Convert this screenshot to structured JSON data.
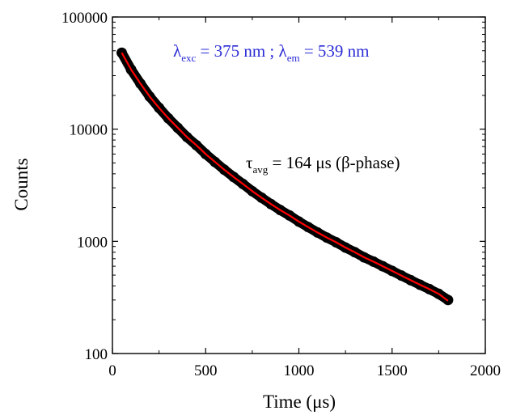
{
  "chart_data": {
    "type": "scatter",
    "xlabel": "Time (μs)",
    "ylabel": "Counts",
    "xlim": [
      0,
      2000
    ],
    "ylim": [
      100,
      100000
    ],
    "yscale": "log",
    "grid": false,
    "x_ticks": [
      0,
      500,
      1000,
      1500,
      2000
    ],
    "y_ticks": [
      100,
      1000,
      10000,
      100000
    ],
    "x_tick_labels": [
      "0",
      "500",
      "1000",
      "1500",
      "2000"
    ],
    "y_tick_labels": [
      "100",
      "1000",
      "10000",
      "100000"
    ],
    "series": [
      {
        "kind": "scatter",
        "color": "#000000",
        "x": [
          50,
          100,
          150,
          200,
          250,
          300,
          350,
          400,
          450,
          500,
          550,
          600,
          650,
          700,
          750,
          800,
          850,
          900,
          950,
          1000,
          1050,
          1100,
          1150,
          1200,
          1250,
          1300,
          1350,
          1400,
          1450,
          1500,
          1550,
          1600,
          1650,
          1700,
          1750,
          1800
        ],
        "y": [
          48000,
          34000,
          25500,
          19500,
          15500,
          12500,
          10300,
          8500,
          7200,
          6000,
          5100,
          4350,
          3750,
          3250,
          2800,
          2450,
          2150,
          1900,
          1700,
          1500,
          1340,
          1200,
          1080,
          980,
          880,
          800,
          720,
          660,
          600,
          545,
          495,
          450,
          410,
          375,
          340,
          300
        ]
      },
      {
        "kind": "fit-line",
        "color": "#ff0000",
        "x": [
          50,
          100,
          150,
          200,
          250,
          300,
          350,
          400,
          450,
          500,
          550,
          600,
          650,
          700,
          750,
          800,
          850,
          900,
          950,
          1000,
          1050,
          1100,
          1150,
          1200,
          1250,
          1300,
          1350,
          1400,
          1450,
          1500,
          1550,
          1600,
          1650,
          1700,
          1750,
          1800
        ],
        "y": [
          48000,
          34000,
          25500,
          19500,
          15500,
          12500,
          10300,
          8500,
          7200,
          6000,
          5100,
          4350,
          3750,
          3250,
          2800,
          2450,
          2150,
          1900,
          1700,
          1500,
          1340,
          1200,
          1080,
          980,
          880,
          800,
          720,
          660,
          600,
          545,
          495,
          450,
          410,
          375,
          340,
          295
        ]
      }
    ],
    "annotations": {
      "excitation": {
        "color": "#2b2bd6",
        "lambda_symbol": "λ",
        "exc_sub": "exc",
        "exc_text": " = 375 nm ; ",
        "em_sub": "em",
        "em_text": " = 539 nm"
      },
      "lifetime": {
        "color": "#000000",
        "tau_symbol": "τ",
        "sub": "avg",
        "text": " = 164 μs  (β-phase)"
      }
    }
  }
}
